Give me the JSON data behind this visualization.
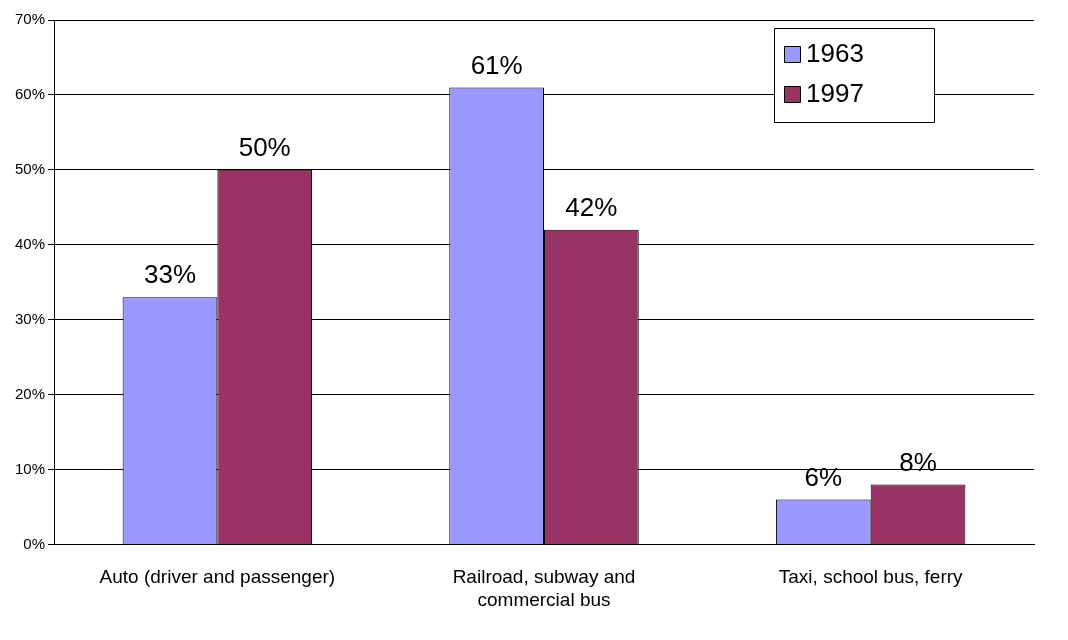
{
  "chart_data": {
    "type": "bar",
    "categories": [
      "Auto (driver and passenger)",
      "Railroad, subway and commercial bus",
      "Taxi, school bus, ferry"
    ],
    "series": [
      {
        "name": "1963",
        "color": "#9999ff",
        "values": [
          33,
          61,
          6
        ],
        "value_labels": [
          "33%",
          "61%",
          "6%"
        ]
      },
      {
        "name": "1997",
        "color": "#993366",
        "values": [
          50,
          42,
          8
        ],
        "value_labels": [
          "50%",
          "42%",
          "8%"
        ]
      }
    ],
    "ylim": [
      0,
      70
    ],
    "yticks": [
      {
        "value": 0,
        "label": "0%"
      },
      {
        "value": 10,
        "label": "10%"
      },
      {
        "value": 20,
        "label": "20%"
      },
      {
        "value": 30,
        "label": "30%"
      },
      {
        "value": 40,
        "label": "40%"
      },
      {
        "value": 50,
        "label": "50%"
      },
      {
        "value": 60,
        "label": "60%"
      },
      {
        "value": 70,
        "label": "70%"
      }
    ],
    "grid": "y",
    "legend": "top right"
  }
}
